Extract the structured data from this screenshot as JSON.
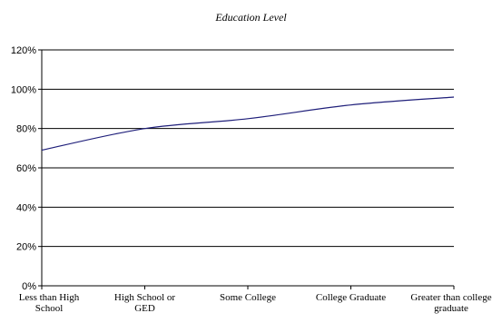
{
  "chart_data": {
    "type": "line",
    "title": "Education Level",
    "categories": [
      [
        "Less than High",
        "School"
      ],
      [
        "High School or",
        "GED"
      ],
      [
        "Some College"
      ],
      [
        "College Graduate"
      ],
      [
        "Greater than college",
        "graduate"
      ]
    ],
    "series": [
      {
        "values": [
          69,
          80,
          85,
          92,
          96
        ],
        "color": "#1f1f7a"
      }
    ],
    "yticks": [
      "0%",
      "20%",
      "40%",
      "60%",
      "80%",
      "100%",
      "120%"
    ],
    "ylim": [
      0,
      120
    ],
    "ystep": 20,
    "grid": true
  }
}
